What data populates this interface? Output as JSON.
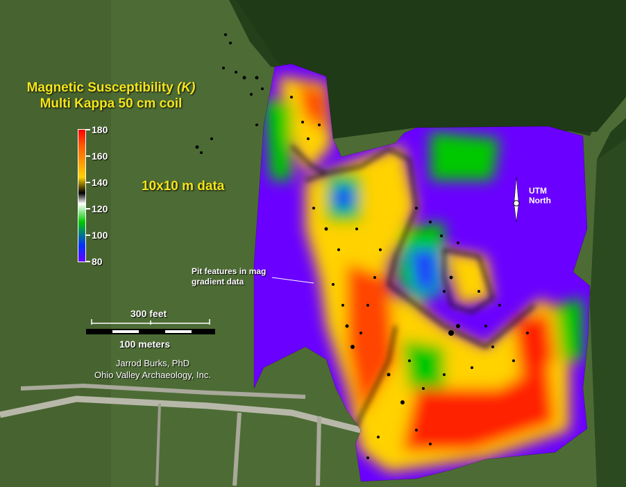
{
  "title": {
    "line1_prefix": "Magnetic Susceptibility ",
    "line1_symbol": "(K)",
    "line2": "Multi Kappa 50 cm coil"
  },
  "legend": {
    "ticks": [
      "180",
      "160",
      "140",
      "120",
      "100",
      "80"
    ],
    "color_stops": [
      "#ff0000",
      "#ff5a00",
      "#ffd200",
      "#000000",
      "#ffffff",
      "#00c800",
      "#0030ff",
      "#6a00ff"
    ]
  },
  "data_note": "10x10 m data",
  "pit_note": {
    "line1": "Pit features in mag",
    "line2": "gradient data"
  },
  "north_arrow": {
    "line1": "UTM",
    "line2": "North"
  },
  "scale_bar": {
    "feet_label": "300 feet",
    "meters_label": "100 meters"
  },
  "credit": {
    "line1": "Jarrod Burks, PhD",
    "line2": "Ohio Valley Archaeology, Inc."
  },
  "colors": {
    "title_text": "#f4e51c",
    "field_green": "#4a6b33",
    "forest_green": "#1f3a17",
    "survey_purple": "#6a00ff"
  }
}
